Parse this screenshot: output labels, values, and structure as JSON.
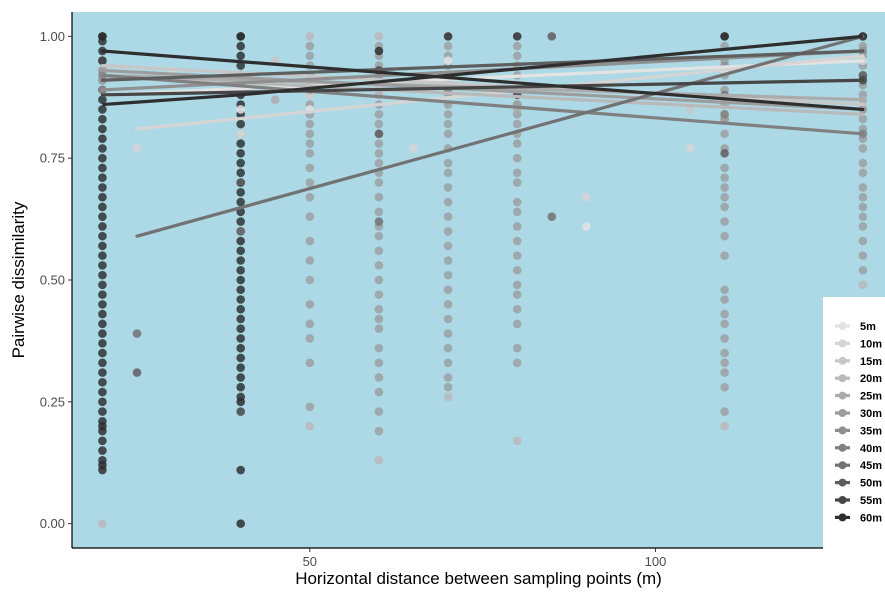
{
  "chart_data": {
    "type": "scatter",
    "xlabel": "Horizontal distance between sampling points (m)",
    "ylabel": "Pairwise dissimilarity",
    "xlim": [
      15.6,
      133.2
    ],
    "ylim": [
      -0.05,
      1.05
    ],
    "x_ticks": [
      50,
      100
    ],
    "y_ticks": [
      0.0,
      0.25,
      0.5,
      0.75,
      1.0
    ],
    "y_tick_labels": [
      "0.00",
      "0.25",
      "0.50",
      "0.75",
      "1.00"
    ],
    "grid": false,
    "background": "#add8e6",
    "legend_position": "right",
    "series": [
      {
        "name": "5m",
        "color": "#e3e3e3",
        "x": [
          20,
          40,
          40,
          50,
          60,
          70,
          80,
          90,
          110
        ],
        "y": [
          0.92,
          0.8,
          0.85,
          0.85,
          0.88,
          0.95,
          0.9,
          0.61,
          0.93
        ],
        "fit": {
          "x": [
            20,
            130
          ],
          "y": [
            0.88,
            0.95
          ]
        }
      },
      {
        "name": "10m",
        "color": "#d5d5d5",
        "x": [
          25,
          30,
          40,
          50,
          65,
          70,
          90,
          105,
          130
        ],
        "y": [
          0.77,
          0.93,
          0.8,
          0.88,
          0.77,
          0.9,
          0.67,
          0.77,
          0.95
        ],
        "fit": {
          "x": [
            25,
            130
          ],
          "y": [
            0.81,
            0.96
          ]
        }
      },
      {
        "name": "15m",
        "color": "#c7c7c7",
        "x": [
          20,
          45,
          50,
          60,
          70,
          105,
          110,
          130
        ],
        "y": [
          0.93,
          0.95,
          0.9,
          0.9,
          1.0,
          0.85,
          0.88,
          0.86
        ],
        "fit": {
          "x": [
            20,
            130
          ],
          "y": [
            0.94,
            0.86
          ]
        }
      },
      {
        "name": "20m",
        "color": "#b9b9b9",
        "x": [
          20,
          50,
          50,
          60,
          60,
          70,
          80,
          110,
          130
        ],
        "y": [
          0.0,
          1.0,
          0.2,
          1.0,
          0.13,
          0.26,
          0.17,
          0.2,
          0.49
        ],
        "fit": {
          "x": [
            20,
            130
          ],
          "y": [
            0.92,
            0.84
          ]
        }
      },
      {
        "name": "25m",
        "color": "#ababab",
        "x": [
          20,
          45,
          60,
          70,
          80,
          110,
          130
        ],
        "y": [
          0.91,
          0.87,
          0.88,
          0.9,
          0.85,
          0.84,
          0.87
        ],
        "fit": {
          "x": [
            20,
            130
          ],
          "y": [
            0.92,
            0.87
          ]
        }
      },
      {
        "name": "30m",
        "color": "#9d9d9d",
        "x": [
          20,
          50,
          60,
          70,
          80,
          110,
          130
        ],
        "y": [
          0.93,
          0.89,
          0.91,
          0.88,
          0.86,
          0.83,
          0.85
        ],
        "fit": {
          "x": [
            20,
            130
          ],
          "y": [
            0.93,
            0.85
          ]
        }
      },
      {
        "name": "35m",
        "color": "#8f8f8f",
        "x": [
          20,
          40,
          70,
          110,
          130
        ],
        "y": [
          0.89,
          0.9,
          0.92,
          0.94,
          0.97
        ],
        "fit": {
          "x": [
            20,
            130
          ],
          "y": [
            0.89,
            0.97
          ]
        }
      },
      {
        "name": "40m",
        "color": "#808080",
        "x": [
          20,
          40,
          70,
          110,
          130
        ],
        "y": [
          0.92,
          0.9,
          0.89,
          0.84,
          0.8
        ],
        "fit": {
          "x": [
            20,
            130
          ],
          "y": [
            0.92,
            0.8
          ]
        }
      },
      {
        "name": "45m",
        "color": "#727272",
        "x": [
          25,
          40,
          60,
          85,
          110,
          130
        ],
        "y": [
          0.39,
          0.6,
          0.62,
          0.63,
          0.88,
          1.0
        ],
        "fit": {
          "x": [
            25,
            130
          ],
          "y": [
            0.59,
            1.0
          ]
        }
      },
      {
        "name": "50m",
        "color": "#5e5e5e",
        "x": [
          25,
          40,
          60,
          85,
          110,
          130
        ],
        "y": [
          0.31,
          0.7,
          0.8,
          1.0,
          0.76,
          0.92
        ],
        "fit": {
          "x": [
            20,
            130
          ],
          "y": [
            0.91,
            0.97
          ]
        }
      },
      {
        "name": "55m",
        "color": "#464646",
        "x": [
          20,
          40,
          60,
          80,
          110,
          130
        ],
        "y": [
          0.95,
          0.23,
          0.93,
          0.88,
          1.0,
          0.91
        ],
        "fit": {
          "x": [
            20,
            130
          ],
          "y": [
            0.88,
            0.91
          ]
        }
      },
      {
        "name": "60m",
        "color": "#2e2e2e",
        "x": [
          20,
          20,
          20,
          40,
          40,
          40,
          60,
          70,
          80,
          110,
          130
        ],
        "y": [
          1.0,
          0.12,
          0.2,
          1.0,
          0.0,
          0.25,
          0.97,
          1.0,
          1.0,
          1.0,
          1.0
        ],
        "fit": {
          "x": [
            20,
            130
          ],
          "y": [
            0.97,
            0.85
          ]
        }
      }
    ],
    "extra_fits": [
      {
        "color": "#2e2e2e",
        "x": [
          20,
          40,
          130
        ],
        "y": [
          0.86,
          0.88,
          1.0
        ]
      }
    ],
    "column_points": [
      {
        "x": 20,
        "color": "#1e1e1e",
        "y": [
          0.11,
          0.13,
          0.15,
          0.17,
          0.19,
          0.21,
          0.23,
          0.25,
          0.27,
          0.29,
          0.31,
          0.33,
          0.35,
          0.37,
          0.39,
          0.41,
          0.43,
          0.45,
          0.47,
          0.49,
          0.51,
          0.53,
          0.55,
          0.57,
          0.59,
          0.61,
          0.63,
          0.65,
          0.67,
          0.69,
          0.71,
          0.73,
          0.75,
          0.77,
          0.79,
          0.81,
          0.83,
          0.85,
          0.87,
          0.89,
          0.91,
          0.93,
          0.95,
          0.97,
          0.99,
          1.0
        ]
      },
      {
        "x": 40,
        "color": "#1e1e1e",
        "y": [
          0.26,
          0.28,
          0.3,
          0.32,
          0.34,
          0.36,
          0.38,
          0.4,
          0.42,
          0.44,
          0.46,
          0.48,
          0.5,
          0.52,
          0.54,
          0.56,
          0.58,
          0.6,
          0.62,
          0.64,
          0.66,
          0.68,
          0.7,
          0.72,
          0.74,
          0.76,
          0.78,
          0.8,
          0.82,
          0.84,
          0.86,
          0.88,
          0.9,
          0.92,
          0.94,
          0.96,
          0.98,
          1.0,
          0.11
        ]
      },
      {
        "x": 50,
        "color": "#9a9a9a",
        "y": [
          0.24,
          0.33,
          0.38,
          0.41,
          0.45,
          0.5,
          0.54,
          0.58,
          0.63,
          0.67,
          0.7,
          0.73,
          0.76,
          0.78,
          0.8,
          0.82,
          0.84,
          0.86,
          0.88,
          0.9,
          0.92,
          0.94,
          0.96,
          0.98
        ]
      },
      {
        "x": 60,
        "color": "#9a9a9a",
        "y": [
          0.19,
          0.23,
          0.27,
          0.3,
          0.33,
          0.36,
          0.4,
          0.42,
          0.44,
          0.47,
          0.5,
          0.53,
          0.56,
          0.59,
          0.61,
          0.64,
          0.67,
          0.7,
          0.72,
          0.74,
          0.76,
          0.78,
          0.8,
          0.82,
          0.84,
          0.86,
          0.88,
          0.9,
          0.92,
          0.94,
          0.96,
          0.98
        ]
      },
      {
        "x": 70,
        "color": "#9a9a9a",
        "y": [
          0.28,
          0.3,
          0.33,
          0.36,
          0.39,
          0.42,
          0.45,
          0.48,
          0.51,
          0.54,
          0.57,
          0.6,
          0.63,
          0.66,
          0.69,
          0.72,
          0.74,
          0.77,
          0.8,
          0.82,
          0.84,
          0.86,
          0.88,
          0.9,
          0.92,
          0.94,
          0.96,
          0.98
        ]
      },
      {
        "x": 80,
        "color": "#9a9a9a",
        "y": [
          0.33,
          0.36,
          0.41,
          0.44,
          0.47,
          0.49,
          0.52,
          0.55,
          0.58,
          0.61,
          0.64,
          0.66,
          0.7,
          0.72,
          0.75,
          0.78,
          0.8,
          0.82,
          0.84,
          0.86,
          0.88,
          0.9,
          0.92,
          0.94,
          0.96,
          0.98
        ]
      },
      {
        "x": 110,
        "color": "#9a9a9a",
        "y": [
          0.23,
          0.28,
          0.31,
          0.33,
          0.35,
          0.38,
          0.41,
          0.43,
          0.46,
          0.48,
          0.55,
          0.59,
          0.62,
          0.65,
          0.67,
          0.69,
          0.71,
          0.73,
          0.77,
          0.8,
          0.83,
          0.86,
          0.89,
          0.92,
          0.95,
          0.98
        ]
      },
      {
        "x": 130,
        "color": "#9a9a9a",
        "y": [
          0.52,
          0.55,
          0.58,
          0.61,
          0.63,
          0.65,
          0.67,
          0.69,
          0.72,
          0.74,
          0.77,
          0.79,
          0.81,
          0.83,
          0.85,
          0.88,
          0.9,
          0.92,
          0.94,
          0.96,
          0.98
        ]
      }
    ]
  }
}
